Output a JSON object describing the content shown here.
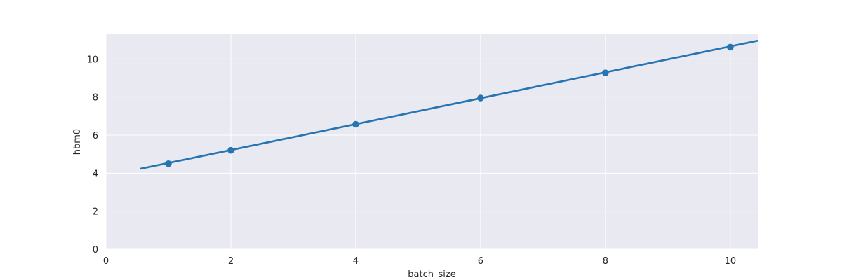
{
  "chart_data": {
    "type": "line",
    "title": "",
    "xlabel": "batch_size",
    "ylabel": "hbm0",
    "xlim": [
      0,
      10.44
    ],
    "ylim": [
      0,
      11.3
    ],
    "grid": true,
    "xticks": [
      0,
      2,
      4,
      6,
      8,
      10
    ],
    "yticks": [
      0,
      2,
      4,
      6,
      8,
      10
    ],
    "series": [
      {
        "style": "points",
        "x": [
          1,
          2,
          4,
          6,
          8,
          10
        ],
        "y": [
          4.5,
          5.2,
          6.57,
          7.95,
          9.27,
          10.62
        ],
        "color": "#2774b3"
      },
      {
        "style": "fit-line",
        "x": [
          0.55,
          10.44
        ],
        "y": [
          4.23,
          10.96
        ],
        "color": "#2774b3"
      }
    ],
    "colors": {
      "plot_background": "#e9e9f1",
      "grid": "#ffffff",
      "series": "#2774b3"
    }
  }
}
